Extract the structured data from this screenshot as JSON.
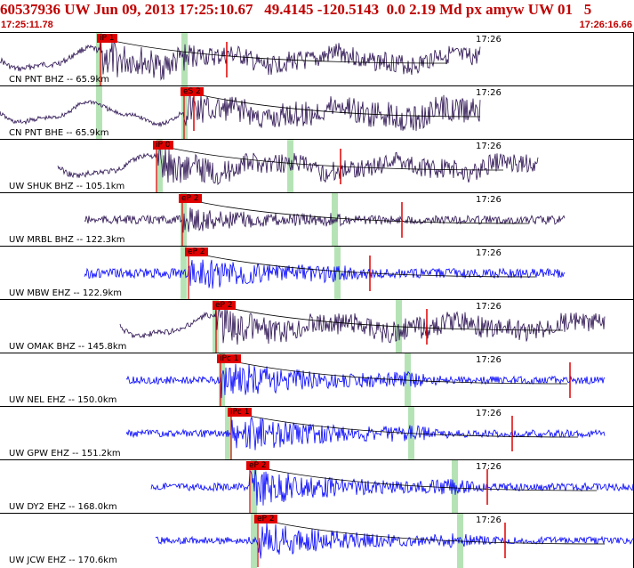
{
  "header": {
    "title": "60537936 UW Jun 09, 2013 17:25:10.67   49.4145 -120.5143  0.0 2.19 Md px amyw UW 01   5",
    "start_time": "17:25:11.78",
    "end_time": "17:26:16.66"
  },
  "colors": {
    "broadband": "#2a1050",
    "shortperiod": "#0000ff",
    "pick": "#e00000",
    "pick_window": "#b6e3b6",
    "title": "#c00000"
  },
  "traces": [
    {
      "label": "CN PNT BHZ -- 65.9km",
      "minute": "17:26",
      "pick": "iP 1",
      "type": "broadband"
    },
    {
      "label": "CN PNT BHE -- 65.9km",
      "minute": "17:26",
      "pick": "eS 2",
      "type": "broadband"
    },
    {
      "label": "UW SHUK BHZ -- 105.1km",
      "minute": "17:26",
      "pick": "iP 0",
      "type": "broadband"
    },
    {
      "label": "UW MRBL BHZ -- 122.3km",
      "minute": "17:26",
      "pick": "eP 2",
      "type": "broadband"
    },
    {
      "label": "UW MBW EHZ -- 122.9km",
      "minute": "17:26",
      "pick": "eP 2",
      "type": "shortperiod"
    },
    {
      "label": "UW OMAK BHZ -- 145.8km",
      "minute": "17:26",
      "pick": "eP 2",
      "type": "broadband"
    },
    {
      "label": "UW NEL EHZ -- 150.0km",
      "minute": "17:26",
      "pick": "iPc 1",
      "type": "shortperiod"
    },
    {
      "label": "UW GPW EHZ -- 151.2km",
      "minute": "17:26",
      "pick": "iPc 1",
      "type": "shortperiod"
    },
    {
      "label": "UW DY2 EHZ -- 168.0km",
      "minute": "17:26",
      "pick": "eP 2",
      "type": "shortperiod"
    },
    {
      "label": "UW JCW EHZ -- 170.6km",
      "minute": "17:26",
      "pick": "eP 2",
      "type": "shortperiod"
    }
  ]
}
